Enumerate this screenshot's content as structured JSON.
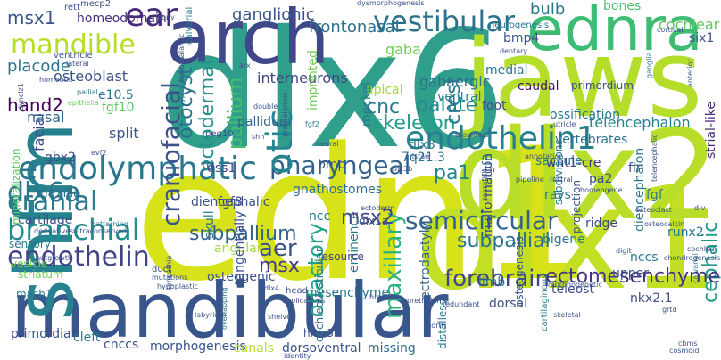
{
  "title": "",
  "words": [
    {
      "text": "dlx6",
      "color": "#2f9e8a"
    },
    {
      "text": "edn1",
      "color": "#d7e219"
    },
    {
      "text": "dlx1",
      "color": "#c2df23"
    },
    {
      "text": "dlx2",
      "color": "#b8de29"
    },
    {
      "text": "jaws",
      "color": "#b5de2b"
    },
    {
      "text": "mandibular",
      "color": "#39568c"
    },
    {
      "text": "arch",
      "color": "#3f4889"
    },
    {
      "text": "shfm",
      "color": "#26828e"
    },
    {
      "text": "ednra",
      "color": "#3fbc73"
    },
    {
      "text": "endothelin1",
      "color": "#27808e"
    },
    {
      "text": "endolymphatic",
      "color": "#2a788e"
    },
    {
      "text": "vestibular",
      "color": "#2c728e"
    },
    {
      "text": "craniofacial",
      "color": "#3b528b"
    },
    {
      "text": "pharyngeal",
      "color": "#33638d"
    },
    {
      "text": "branchial",
      "color": "#228c8d"
    },
    {
      "text": "cranial",
      "color": "#2a788e"
    },
    {
      "text": "dlx6a",
      "color": "#2a788e"
    },
    {
      "text": "endothelin",
      "color": "#414487"
    },
    {
      "text": "ear",
      "color": "#472d7b"
    },
    {
      "text": "mandible",
      "color": "#b5de2b"
    },
    {
      "text": "otic",
      "color": "#24868e"
    },
    {
      "text": "ectodermal",
      "color": "#21918c"
    },
    {
      "text": "otocyst",
      "color": "#2c728e"
    },
    {
      "text": "maxillary",
      "color": "#2db27d"
    },
    {
      "text": "olfactory",
      "color": "#21a585"
    },
    {
      "text": "semicircular",
      "color": "#33638d"
    },
    {
      "text": "forebrain",
      "color": "#3f4788"
    },
    {
      "text": "cephalic",
      "color": "#1f998a"
    },
    {
      "text": "ectomesenchyme",
      "color": "#46337e"
    },
    {
      "text": "subpallial",
      "color": "#2c728e"
    },
    {
      "text": "subpallium",
      "color": "#33638d"
    },
    {
      "text": "pallium",
      "color": "#44bf70"
    },
    {
      "text": "aer",
      "color": "#3b528b"
    },
    {
      "text": "skeleton",
      "color": "#1f9e89"
    },
    {
      "text": "palate",
      "color": "#24878e"
    },
    {
      "text": "msx2",
      "color": "#404688"
    },
    {
      "text": "msx",
      "color": "#443b84"
    },
    {
      "text": "crest",
      "color": "#2a788e"
    },
    {
      "text": "pa1",
      "color": "#24868e"
    },
    {
      "text": "cnc",
      "color": "#2a788e"
    },
    {
      "text": "hand2",
      "color": "#440154"
    },
    {
      "text": "msx1",
      "color": "#3b528b"
    },
    {
      "text": "placode",
      "color": "#2a768e"
    },
    {
      "text": "homeodomain",
      "color": "#472d7b"
    },
    {
      "text": "ganglionic",
      "color": "#3a538b"
    },
    {
      "text": "frontonasal",
      "color": "#2c718e"
    },
    {
      "text": "gaba",
      "color": "#6ece58"
    },
    {
      "text": "bulb",
      "color": "#2a788e"
    },
    {
      "text": "bones",
      "color": "#4ac16d"
    },
    {
      "text": "cochlear",
      "color": "#5ec962"
    },
    {
      "text": "osteoblast",
      "color": "#3b528b"
    },
    {
      "text": "interneurons",
      "color": "#404688"
    },
    {
      "text": "bmp4",
      "color": "#3b528b"
    },
    {
      "text": "apical",
      "color": "#a2da37"
    },
    {
      "text": "gabaergic",
      "color": "#2c728e"
    },
    {
      "text": "ventral",
      "color": "#26828e"
    },
    {
      "text": "caudal",
      "color": "#471164"
    },
    {
      "text": "medial",
      "color": "#2a788e"
    },
    {
      "text": "six1",
      "color": "#3b528b"
    },
    {
      "text": "strial-like",
      "color": "#482878"
    },
    {
      "text": "facial",
      "color": "#3e4a89"
    },
    {
      "text": "nasal",
      "color": "#31688e"
    },
    {
      "text": "e10.5",
      "color": "#2c728e"
    },
    {
      "text": "fgf10",
      "color": "#5ec962"
    },
    {
      "text": "split",
      "color": "#3b528b"
    },
    {
      "text": "pallidum",
      "color": "#33638d"
    },
    {
      "text": "imprinted",
      "color": "#6ece58"
    },
    {
      "text": "meckel",
      "color": "#2a788e"
    },
    {
      "text": "dlx3",
      "color": "#2a788e"
    },
    {
      "text": "foot",
      "color": "#3b528b"
    },
    {
      "text": "telencephalon",
      "color": "#26828e"
    },
    {
      "text": "gbx2",
      "color": "#3e4a89"
    },
    {
      "text": "dss1",
      "color": "#414487"
    },
    {
      "text": "maxilla",
      "color": "#2d708e"
    },
    {
      "text": "diencephalic",
      "color": "#3b528b"
    },
    {
      "text": "bmp",
      "color": "#3b528b"
    },
    {
      "text": "gnathostomes",
      "color": "#2c728e"
    },
    {
      "text": "7q21.3",
      "color": "#2c728e"
    },
    {
      "text": "malformation",
      "color": "#414487"
    },
    {
      "text": "wnt1-cre",
      "color": "#46337e"
    },
    {
      "text": "fin",
      "color": "#3b528b"
    },
    {
      "text": "rays",
      "color": "#2a788e"
    },
    {
      "text": "pa2",
      "color": "#3e4a89"
    },
    {
      "text": "diencephalon",
      "color": "#2a788e"
    },
    {
      "text": "saccule",
      "color": "#2a788e"
    },
    {
      "text": "ossification",
      "color": "#2a788e"
    },
    {
      "text": "vertebrates",
      "color": "#2c728e"
    },
    {
      "text": "fgf3",
      "color": "#2c728e"
    },
    {
      "text": "cartilage",
      "color": "#3b528b"
    },
    {
      "text": "skull",
      "color": "#2a788e"
    },
    {
      "text": "fgf8",
      "color": "#3e4a89"
    },
    {
      "text": "ncc",
      "color": "#2a788e"
    },
    {
      "text": "dlx1a",
      "color": "#3b528b"
    },
    {
      "text": "eminence",
      "color": "#2a788e"
    },
    {
      "text": "ectrodactyly",
      "color": "#33638d"
    },
    {
      "text": "ridge",
      "color": "#3e4a89"
    },
    {
      "text": "fgf",
      "color": "#2a788e"
    },
    {
      "text": "angular",
      "color": "#a2da37"
    },
    {
      "text": "tangentially",
      "color": "#3b528b"
    },
    {
      "text": "resource",
      "color": "#443b84"
    },
    {
      "text": "bigene",
      "color": "#2a788e"
    },
    {
      "text": "nccs",
      "color": "#2a788e"
    },
    {
      "text": "runx2",
      "color": "#2a788e"
    },
    {
      "text": "vesicle",
      "color": "#6ece58"
    },
    {
      "text": "striatum",
      "color": "#6ece58"
    },
    {
      "text": "osteogenic",
      "color": "#3b528b"
    },
    {
      "text": "mesenchyme",
      "color": "#2a788e"
    },
    {
      "text": "upper",
      "color": "#3b528b"
    },
    {
      "text": "mash1",
      "color": "#2a788e"
    },
    {
      "text": "primordia",
      "color": "#3b528b"
    },
    {
      "text": "cleft",
      "color": "#2a788e"
    },
    {
      "text": "cnccs",
      "color": "#3b528b"
    },
    {
      "text": "morphogenesis",
      "color": "#3b528b"
    },
    {
      "text": "canals",
      "color": "#b5de2b"
    },
    {
      "text": "dorsoventral",
      "color": "#3b528b"
    },
    {
      "text": "missing",
      "color": "#31688e"
    },
    {
      "text": "hmx3",
      "color": "#3b528b"
    },
    {
      "text": "teleost",
      "color": "#3e4a89"
    },
    {
      "text": "nkx2.1",
      "color": "#3e4a89"
    },
    {
      "text": "dorsal",
      "color": "#3b528b"
    },
    {
      "text": "limb",
      "color": "#2a788e"
    },
    {
      "text": "distalless",
      "color": "#2a788e"
    },
    {
      "text": "osteogenesis",
      "color": "#3b528b"
    },
    {
      "text": "subdivisions",
      "color": "#2a788e"
    },
    {
      "text": "projection",
      "color": "#3b528b"
    },
    {
      "text": "cochleovestibular",
      "color": "#2a788e"
    },
    {
      "text": "sensory",
      "color": "#2a788e"
    },
    {
      "text": "primordium",
      "color": "#3b528b"
    },
    {
      "text": "mineralization",
      "color": "#5ec962"
    },
    {
      "text": "rett",
      "color": "#3b528b"
    },
    {
      "text": "mecp2",
      "color": "#3b528b"
    },
    {
      "text": "ventricle",
      "color": "#3b528b"
    },
    {
      "text": "calvarial",
      "color": "#2a788e"
    },
    {
      "text": "neurogenesis",
      "color": "#2a788e"
    },
    {
      "text": "bony",
      "color": "#3b528b"
    },
    {
      "text": "dysmorphogenesis",
      "color": "#3b528b"
    },
    {
      "text": "dentary",
      "color": "#3b528b"
    },
    {
      "text": "lateral",
      "color": "#3b528b"
    },
    {
      "text": "homeotic",
      "color": "#3b528b"
    },
    {
      "text": "pallial",
      "color": "#2a788e"
    },
    {
      "text": "epithelia",
      "color": "#6ece58"
    },
    {
      "text": "hypothalamus",
      "color": "#2a788e"
    },
    {
      "text": "fgf2",
      "color": "#2a788e"
    },
    {
      "text": "dynclz1",
      "color": "#3b528b"
    },
    {
      "text": "peg10",
      "color": "#3b528b"
    },
    {
      "text": "shh",
      "color": "#3b528b"
    },
    {
      "text": "evf2",
      "color": "#3b528b"
    },
    {
      "text": "neural",
      "color": "#3b528b"
    },
    {
      "text": "cristae",
      "color": "#3b528b"
    },
    {
      "text": "utricle",
      "color": "#3b528b"
    },
    {
      "text": "outgrowth",
      "color": "#3b528b"
    },
    {
      "text": "derivatives",
      "color": "#3b528b"
    },
    {
      "text": "patterning",
      "color": "#2a788e"
    },
    {
      "text": "ultraconserved",
      "color": "#3b528b"
    },
    {
      "text": "synpathia",
      "color": "#3b528b"
    },
    {
      "text": "hypoplastic",
      "color": "#3b528b"
    },
    {
      "text": "duct",
      "color": "#3b528b"
    },
    {
      "text": "mutations",
      "color": "#3b528b"
    },
    {
      "text": "head",
      "color": "#3b528b"
    },
    {
      "text": "duplications",
      "color": "#3b528b"
    },
    {
      "text": "labyrinth",
      "color": "#3b528b"
    },
    {
      "text": "overlapping",
      "color": "#2a788e"
    },
    {
      "text": "identity",
      "color": "#3b528b"
    },
    {
      "text": "redundant",
      "color": "#3b528b"
    },
    {
      "text": "cartilaginous",
      "color": "#2a788e"
    },
    {
      "text": "skeletal",
      "color": "#3b528b"
    },
    {
      "text": "morphogenetic",
      "color": "#3b528b"
    },
    {
      "text": "hindbrain",
      "color": "#3b528b"
    },
    {
      "text": "prethalamic",
      "color": "#3b528b"
    },
    {
      "text": "calvarial",
      "color": "#2a788e"
    },
    {
      "text": "osteocalcin",
      "color": "#3b528b"
    },
    {
      "text": "digit",
      "color": "#3b528b"
    },
    {
      "text": "homeogene",
      "color": "#3b528b"
    },
    {
      "text": "rostral",
      "color": "#3b528b"
    },
    {
      "text": "d-v",
      "color": "#3b528b"
    },
    {
      "text": "chondrogenesis",
      "color": "#3b528b"
    },
    {
      "text": "ganglia",
      "color": "#2a788e"
    },
    {
      "text": "cortical",
      "color": "#3b528b"
    },
    {
      "text": "anterior",
      "color": "#3b528b"
    },
    {
      "text": "thalamus",
      "color": "#3b528b"
    },
    {
      "text": "hypothalamic",
      "color": "#3b528b"
    },
    {
      "text": "dlx3b",
      "color": "#3b528b"
    },
    {
      "text": "dlx4",
      "color": "#3b528b"
    },
    {
      "text": "arx",
      "color": "#3b528b"
    },
    {
      "text": "double",
      "color": "#3b528b"
    },
    {
      "text": "prethalamus",
      "color": "#3b528b"
    },
    {
      "text": "zebrafish",
      "color": "#3b528b"
    },
    {
      "text": "pipeline",
      "color": "#3b528b"
    },
    {
      "text": "annotation",
      "color": "#3b528b"
    },
    {
      "text": "ectoderm",
      "color": "#3b528b"
    },
    {
      "text": "osteoclast",
      "color": "#3b528b"
    },
    {
      "text": "telencephalic",
      "color": "#3b528b"
    },
    {
      "text": "shelves",
      "color": "#3b528b"
    },
    {
      "text": "biorth",
      "color": "#3b528b"
    },
    {
      "text": "cochlea",
      "color": "#3b528b"
    },
    {
      "text": "cbms",
      "color": "#3b528b"
    },
    {
      "text": "cosmoid",
      "color": "#3b528b"
    },
    {
      "text": "grtd",
      "color": "#3b528b"
    }
  ]
}
